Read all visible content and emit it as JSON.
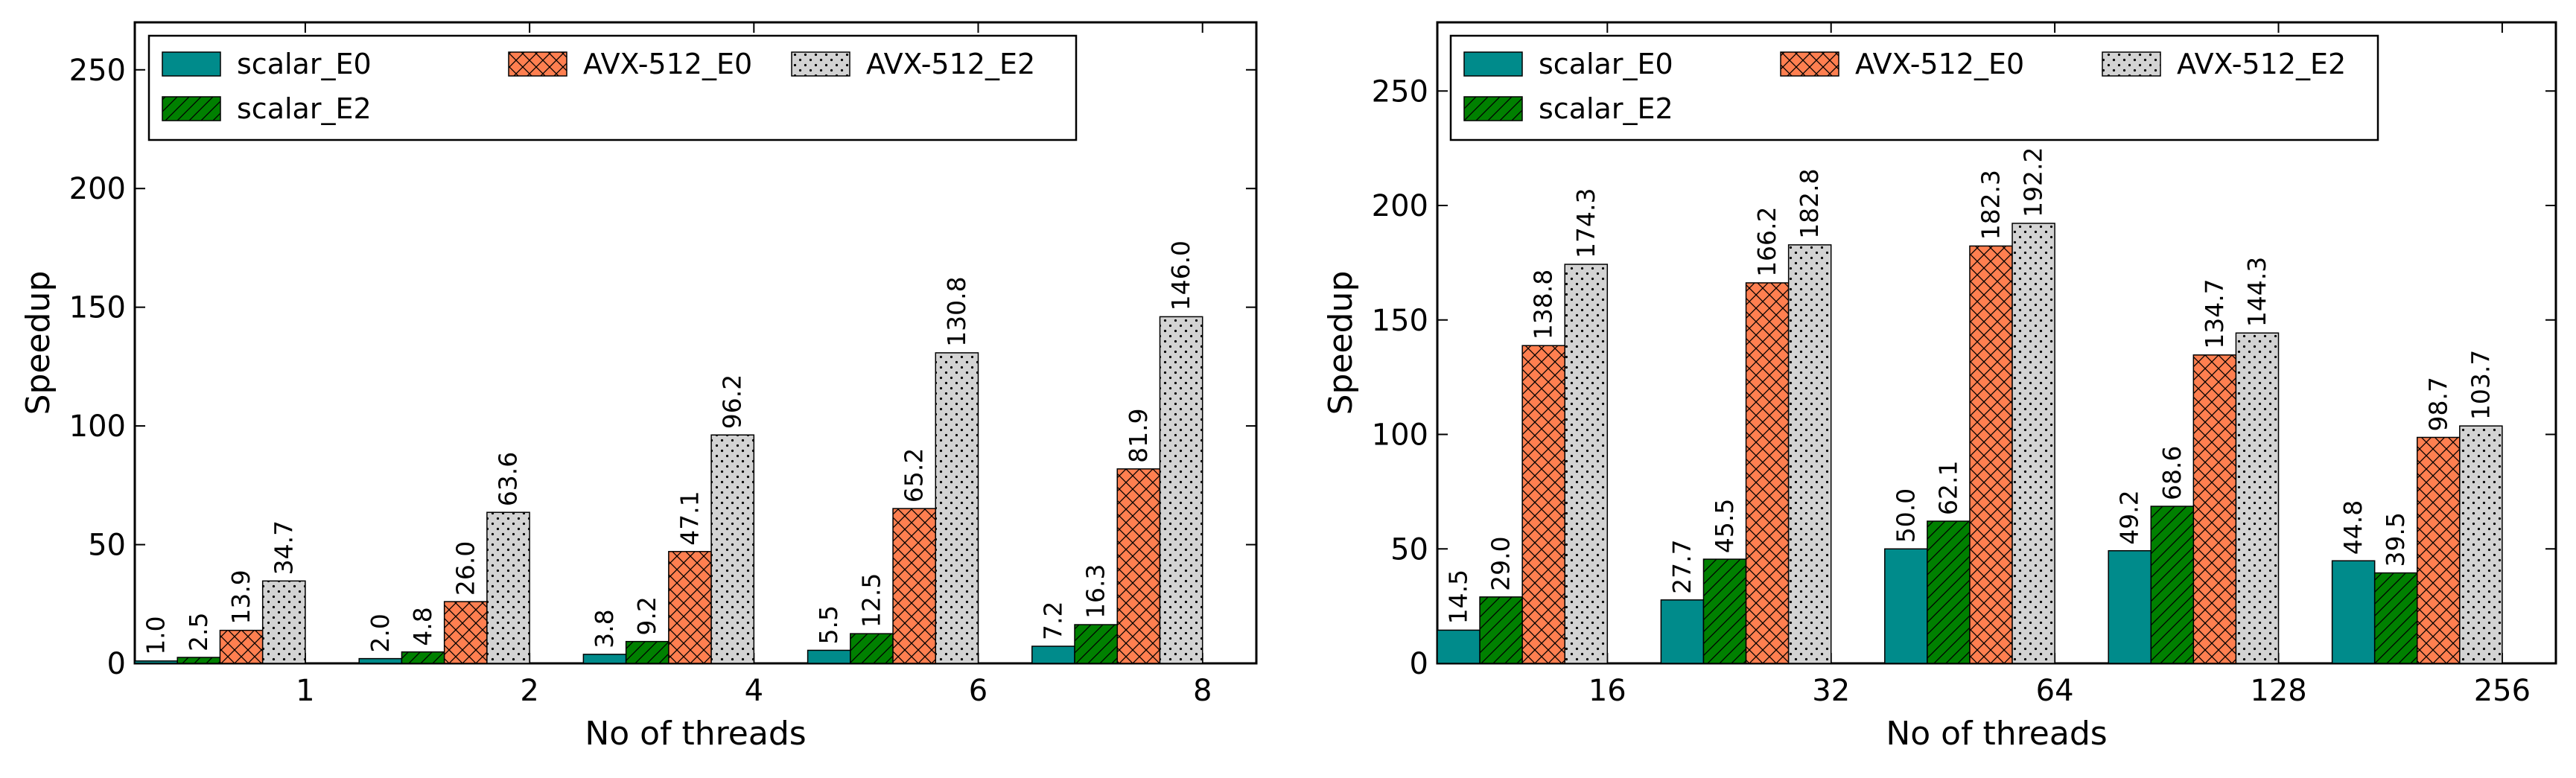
{
  "chart_data": [
    {
      "type": "bar",
      "xlabel": "No of threads",
      "ylabel": "Speedup",
      "ylim": [
        0,
        270
      ],
      "yticks": [
        0,
        50,
        100,
        150,
        200,
        250
      ],
      "categories": [
        "1",
        "2",
        "4",
        "6",
        "8"
      ],
      "legend_position": "top-left",
      "series": [
        {
          "name": "scalar_E0",
          "values": [
            1.0,
            2.0,
            3.8,
            5.5,
            7.2
          ],
          "labels": [
            "1.0",
            "2.0",
            "3.8",
            "5.5",
            "7.2"
          ]
        },
        {
          "name": "scalar_E2",
          "values": [
            2.5,
            4.8,
            9.2,
            12.5,
            16.3
          ],
          "labels": [
            "2.5",
            "4.8",
            "9.2",
            "12.5",
            "16.3"
          ]
        },
        {
          "name": "AVX-512_E0",
          "values": [
            13.9,
            26.0,
            47.1,
            65.2,
            81.9
          ],
          "labels": [
            "13.9",
            "26.0",
            "47.1",
            "65.2",
            "81.9"
          ]
        },
        {
          "name": "AVX-512_E2",
          "values": [
            34.7,
            63.6,
            96.2,
            130.8,
            146.0
          ],
          "labels": [
            "34.7",
            "63.6",
            "96.2",
            "130.8",
            "146.0"
          ]
        }
      ]
    },
    {
      "type": "bar",
      "xlabel": "No of threads",
      "ylabel": "Speedup",
      "ylim": [
        0,
        280
      ],
      "yticks": [
        0,
        50,
        100,
        150,
        200,
        250
      ],
      "categories": [
        "16",
        "32",
        "64",
        "128",
        "256"
      ],
      "legend_position": "top",
      "series": [
        {
          "name": "scalar_E0",
          "values": [
            14.5,
            27.7,
            50.0,
            49.2,
            44.8
          ],
          "labels": [
            "14.5",
            "27.7",
            "50.0",
            "49.2",
            "44.8"
          ]
        },
        {
          "name": "scalar_E2",
          "values": [
            29.0,
            45.5,
            62.1,
            68.6,
            39.5
          ],
          "labels": [
            "29.0",
            "45.5",
            "62.1",
            "68.6",
            "39.5"
          ]
        },
        {
          "name": "AVX-512_E0",
          "values": [
            138.8,
            166.2,
            182.3,
            134.7,
            98.7
          ],
          "labels": [
            "138.8",
            "166.2",
            "182.3",
            "134.7",
            "98.7"
          ]
        },
        {
          "name": "AVX-512_E2",
          "values": [
            174.3,
            182.8,
            192.2,
            144.3,
            103.7
          ],
          "labels": [
            "174.3",
            "182.8",
            "192.2",
            "144.3",
            "103.7"
          ]
        }
      ]
    }
  ],
  "colors": {
    "scalar_E0": "#008B8B",
    "scalar_E2": "#008000",
    "AVX-512_E0": "#FF7F50",
    "AVX-512_E2": "#D3D3D3"
  }
}
